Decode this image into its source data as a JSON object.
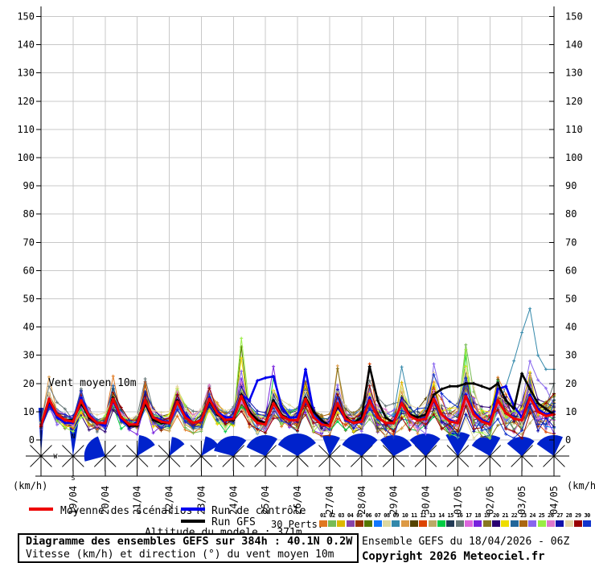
{
  "chart": {
    "label_wind": "Vent moyen 10m",
    "unit_left": "(km/h)",
    "unit_right": "(km/h)"
  },
  "legend": {
    "mean_label": "Moyenne des scénarios",
    "control_label": "Run de contrôle",
    "gfs_label": "Run GFS",
    "perts_label": "30 Perts.",
    "altitude_label": "Altitude du modele : 371m",
    "pert_numbers": [
      "01",
      "02",
      "03",
      "04",
      "05",
      "06",
      "07",
      "08",
      "09",
      "10",
      "11",
      "12",
      "13",
      "14",
      "15",
      "16",
      "17",
      "18",
      "19",
      "20",
      "21",
      "22",
      "23",
      "24",
      "25",
      "26",
      "27",
      "28",
      "29",
      "30"
    ]
  },
  "footer": {
    "title": "Diagramme des ensembles GEFS sur 384h : 40.1N 0.2W",
    "subtitle": "Vitesse (km/h) et direction (°) du vent moyen 10m",
    "run_label": "Ensemble GEFS du 18/04/2026 - 06Z",
    "copyright": "Copyright 2026 Meteociel.fr"
  },
  "chart_data": {
    "type": "line",
    "title": "Vent moyen 10m",
    "ylabel": "(km/h)",
    "ylim": [
      0,
      152
    ],
    "yticks": [
      0,
      10,
      20,
      30,
      40,
      50,
      60,
      70,
      80,
      90,
      100,
      110,
      120,
      130,
      140,
      150
    ],
    "x_total_hours": 384,
    "x_hours_step": 6,
    "x_date_labels": [
      "19/04",
      "20/04",
      "21/04",
      "22/04",
      "23/04",
      "24/04",
      "25/04",
      "26/04",
      "27/04",
      "28/04",
      "29/04",
      "30/04",
      "01/05",
      "02/05",
      "03/05",
      "04/05"
    ],
    "grid_color": "#c8c8c8",
    "series": {
      "mean": {
        "name": "Moyenne des scénarios",
        "color": "#ee0000",
        "width": 3,
        "values": [
          5,
          14.5,
          9,
          7,
          6.5,
          14,
          8.5,
          6,
          6,
          14.5,
          8,
          5.5,
          5.5,
          14,
          8,
          6.5,
          6,
          13.5,
          8,
          6,
          7,
          14.5,
          9.5,
          7,
          7.5,
          15.5,
          9,
          6,
          5.5,
          13,
          8.5,
          7,
          7,
          14.5,
          8,
          5.5,
          5,
          13,
          7.5,
          6,
          6.5,
          14,
          8,
          6,
          6,
          13,
          8.5,
          7,
          7.5,
          14.5,
          9,
          6.5,
          6,
          15.5,
          9,
          6.5,
          5.5,
          14,
          9.5,
          7.5,
          7,
          15,
          10,
          8.5,
          9
        ]
      },
      "control": {
        "name": "Run de contrôle",
        "color": "#0000ee",
        "width": 2.6,
        "values": [
          5,
          13,
          8,
          6,
          6,
          15,
          9,
          6,
          5,
          14,
          7,
          5,
          6,
          13,
          8,
          7,
          6,
          14,
          9,
          6,
          7,
          15,
          10,
          8,
          8,
          16,
          14,
          21,
          22,
          22.5,
          12,
          8,
          8,
          25,
          10,
          6,
          5,
          12,
          7,
          6,
          7,
          15,
          8,
          6,
          6,
          13,
          9,
          7,
          8,
          15,
          9,
          7,
          6,
          16,
          10,
          7,
          6,
          18,
          19,
          12,
          8,
          16,
          11,
          9,
          10
        ]
      },
      "gfs": {
        "name": "Run GFS",
        "color": "#000000",
        "width": 2.6,
        "values": [
          5,
          14,
          9,
          7,
          7,
          13,
          8,
          6,
          6,
          15,
          8,
          5,
          5,
          13,
          7,
          6,
          6,
          14,
          8,
          6,
          7,
          14,
          9,
          7,
          7,
          16,
          10,
          7,
          6,
          14,
          9,
          7,
          7,
          15,
          10,
          7,
          5,
          12,
          8,
          6,
          8,
          26,
          14,
          8,
          6,
          13,
          9,
          8,
          9,
          16,
          18,
          19,
          19,
          20,
          20,
          19,
          18,
          20,
          14,
          11,
          23.5,
          18,
          13,
          11,
          9
        ]
      }
    },
    "ensemble": {
      "count": 30,
      "colors": [
        "#E07820",
        "#77BB55",
        "#DDB700",
        "#8844AA",
        "#993300",
        "#557700",
        "#1177FF",
        "#DDD8A0",
        "#3388AA",
        "#DD9944",
        "#554400",
        "#DD4400",
        "#BBAA66",
        "#00CC44",
        "#223B55",
        "#667777",
        "#DD66DD",
        "#7722DD",
        "#887722",
        "#2A0070",
        "#EEDD00",
        "#22669A",
        "#AA6611",
        "#8866EE",
        "#99EE44",
        "#DD77CC",
        "#1111AA",
        "#E5D5A5",
        "#990000",
        "#1133CC"
      ],
      "spread": [
        1.5,
        2.5,
        2,
        1.8,
        1.8,
        2.8,
        2.2,
        2,
        2,
        3,
        2.4,
        2,
        2,
        3,
        2.5,
        2.2,
        2.2,
        3.2,
        2.6,
        2.2,
        2.4,
        3.4,
        2.8,
        2.4,
        2.6,
        4.5,
        3.2,
        2.6,
        2.8,
        4,
        3,
        2.6,
        2.8,
        4.2,
        3.2,
        2.8,
        3,
        4.2,
        3.2,
        2.8,
        3.2,
        4.5,
        3.5,
        3,
        3.4,
        4.8,
        3.6,
        3.2,
        3.6,
        5,
        4,
        3.5,
        4,
        5.5,
        4.5,
        3.8,
        4.2,
        6,
        5,
        4.2,
        4.5,
        6.5,
        5.5,
        4.8,
        5
      ],
      "overrides": {
        "5": {
          "25": 33
        },
        "8": {
          "57": 12,
          "58": 19,
          "59": 28,
          "60": 38,
          "61": 46.5,
          "62": 30,
          "63": 25,
          "64": 25
        },
        "13": {
          "53": 30
        },
        "15": {
          "61": 20.5,
          "64": 20
        },
        "17": {
          "29": 26
        },
        "20": {
          "25": 29,
          "61": 24
        },
        "24": {
          "25": 36,
          "53": 32
        }
      }
    },
    "wind_roses": {
      "arrow_color": "#0022cc",
      "compass_labels": {
        "n": "N",
        "s": "S",
        "w": "W",
        "e": "E"
      },
      "labeled_rose_index": 1,
      "fans": [
        {
          "d": 0,
          "a1": -3,
          "a2": 4,
          "r": 60
        },
        {
          "d": 1,
          "a1": -7,
          "a2": 9,
          "r": 47
        },
        {
          "d": 2,
          "a1": 255,
          "a2": 340,
          "r": 26
        },
        {
          "d": 3,
          "a1": 5,
          "a2": 58,
          "r": 26
        },
        {
          "d": 4,
          "a1": 8,
          "a2": 52,
          "r": 24
        },
        {
          "d": 5,
          "a1": 12,
          "a2": 58,
          "r": 25
        },
        {
          "d": 6,
          "a1": 285,
          "a2": 40,
          "r": 25
        },
        {
          "d": 7,
          "a1": 295,
          "a2": 35,
          "r": 26
        },
        {
          "d": 8,
          "a1": 300,
          "a2": 55,
          "r": 28
        },
        {
          "d": 9,
          "a1": 340,
          "a2": 30,
          "r": 26
        },
        {
          "d": 10,
          "a1": 300,
          "a2": 45,
          "r": 28
        },
        {
          "d": 11,
          "a1": 320,
          "a2": 60,
          "r": 26
        },
        {
          "d": 12,
          "a1": 315,
          "a2": 40,
          "r": 28
        },
        {
          "d": 13,
          "a1": 330,
          "a2": 30,
          "r": 30
        },
        {
          "d": 14,
          "a1": 300,
          "a2": 30,
          "r": 26
        },
        {
          "d": 15,
          "a1": 310,
          "a2": 40,
          "r": 24
        },
        {
          "d": 16,
          "a1": 305,
          "a2": 25,
          "r": 26
        }
      ]
    }
  }
}
